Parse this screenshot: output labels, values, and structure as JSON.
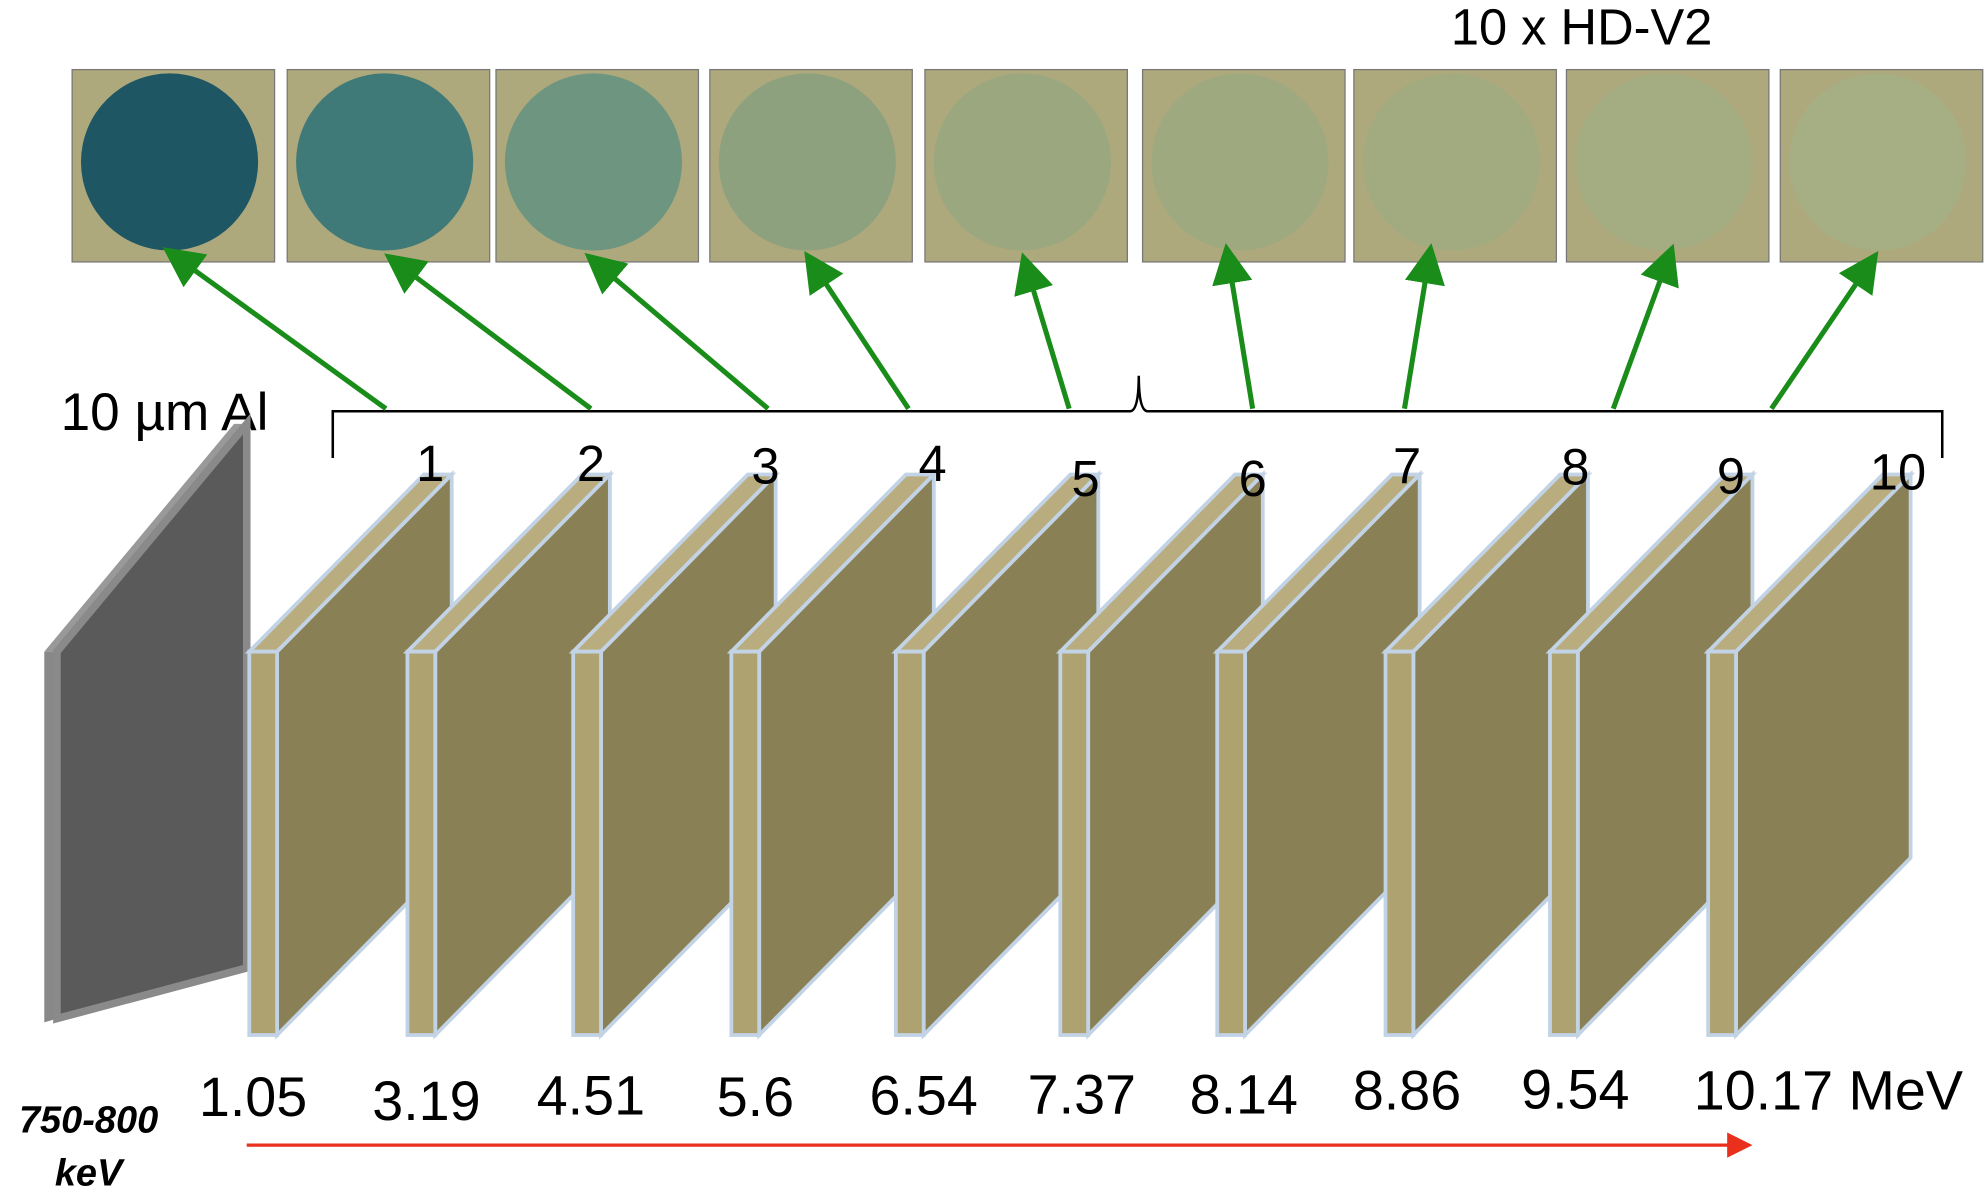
{
  "title": "10 x HD-V2",
  "filter_label": "10 µm Al",
  "layers": [
    {
      "label": "1",
      "energy": "1.05"
    },
    {
      "label": "2",
      "energy": "3.19"
    },
    {
      "label": "3",
      "energy": "4.51"
    },
    {
      "label": "4",
      "energy": "5.6"
    },
    {
      "label": "5",
      "energy": "6.54"
    },
    {
      "label": "6",
      "energy": "7.37"
    },
    {
      "label": "7",
      "energy": "8.14"
    },
    {
      "label": "8",
      "energy": "8.86"
    },
    {
      "label": "9",
      "energy": "9.54"
    },
    {
      "label": "10",
      "energy": "10.17 MeV"
    }
  ],
  "beam_label": [
    "750-800",
    "keV"
  ]
}
